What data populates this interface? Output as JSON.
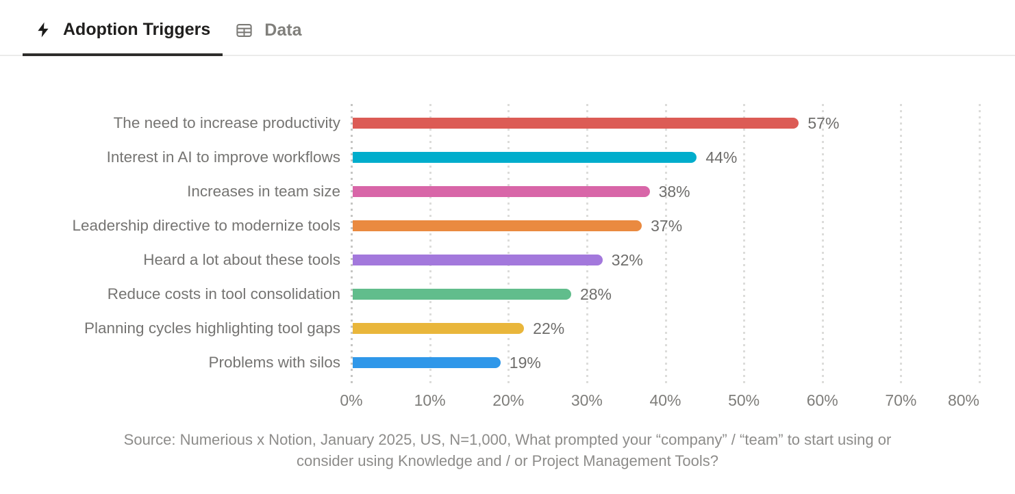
{
  "tabs": {
    "adoption": {
      "label": "Adoption Triggers",
      "icon": "lightning-icon",
      "active": true
    },
    "data": {
      "label": "Data",
      "icon": "table-icon",
      "active": false
    }
  },
  "chart_data": {
    "type": "bar",
    "orientation": "horizontal",
    "title": "",
    "categories": [
      "The need to increase productivity",
      "Interest in AI to improve workflows",
      "Increases in team size",
      "Leadership directive to modernize tools",
      "Heard a lot about these tools",
      "Reduce costs in tool consolidation",
      "Planning cycles highlighting tool gaps",
      "Problems with silos"
    ],
    "values": [
      57,
      44,
      38,
      37,
      32,
      28,
      22,
      19
    ],
    "value_labels": [
      "57%",
      "44%",
      "38%",
      "37%",
      "32%",
      "28%",
      "22%",
      "19%"
    ],
    "bar_colors": [
      "#DC5B55",
      "#00ADCC",
      "#D866A8",
      "#EA8A40",
      "#A378DC",
      "#61BD8C",
      "#E9B63B",
      "#2F97E9"
    ],
    "xlabel": "",
    "ylabel": "",
    "xlim": [
      0,
      80
    ],
    "x_tick_labels": [
      "0%",
      "10%",
      "20%",
      "30%",
      "40%",
      "50%",
      "60%",
      "70%",
      "80%"
    ],
    "grid": "vertical-dotted",
    "legend": "none"
  },
  "source_note": {
    "lines": [
      "Source: Numerious x Notion, January 2025, US, N=1,000, What prompted your “company” / “team” to start using or",
      "consider using Knowledge and / or Project Management Tools?"
    ]
  },
  "theme": {
    "active_tab_color": "#201F1E",
    "inactive_tab_color": "#807F7B",
    "tab_underline": "#2E2D2B",
    "tab_border": "#EBEBEA",
    "label_color": "#757472",
    "value_label_color": "#6E6D6B",
    "tick_color": "#7E7D7A",
    "source_color": "#8D8C8A",
    "grid_color": "#DCDCDA",
    "axis_line_color": "#C5C5C3"
  }
}
